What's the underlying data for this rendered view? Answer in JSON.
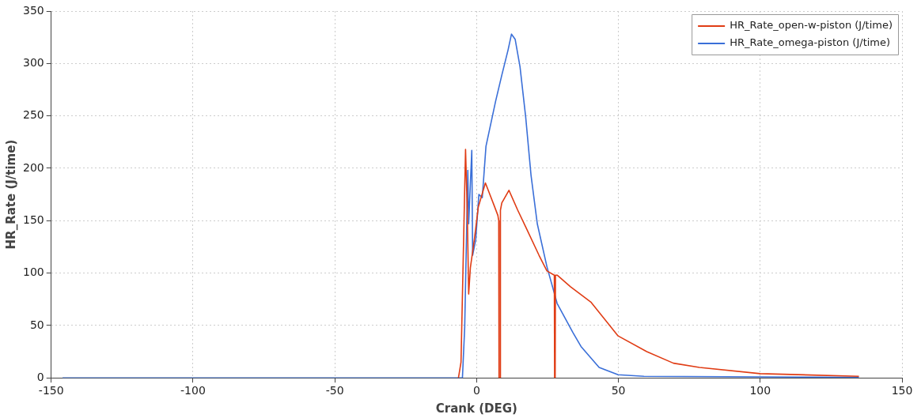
{
  "chart_data": {
    "type": "line",
    "xlabel": "Crank (DEG)",
    "ylabel": "HR_Rate (J/time)",
    "xlim": [
      -150,
      150
    ],
    "xticks": [
      -150,
      -100,
      -50,
      0,
      50,
      100,
      150
    ],
    "ylim": [
      0,
      350
    ],
    "yticks": [
      0,
      50,
      100,
      150,
      200,
      250,
      300,
      350
    ],
    "grid": true,
    "legend": "top right",
    "marker": "none",
    "line_style": "solid",
    "series": [
      {
        "name": "HR_Rate_open-w-piston (J/time)",
        "color": "#e03c14",
        "x": [
          -6.4,
          -5.5,
          -3.9,
          -3.3,
          -2.8,
          -2.2,
          -0.8,
          0.6,
          3.1,
          6.1,
          7.5,
          7.8,
          7.9,
          8.3,
          8.4,
          8.9,
          11.4,
          14.5,
          17.3,
          22,
          24.8,
          27.4,
          27.5,
          27.7,
          27.8,
          28.4,
          33.1,
          40.4,
          49.9,
          60,
          69.4,
          78.6,
          100,
          134.8
        ],
        "values": [
          0,
          15,
          218,
          160,
          80,
          105,
          132,
          163,
          186,
          165,
          155,
          150,
          0,
          0,
          160,
          167,
          179,
          160,
          144,
          117,
          102,
          98,
          0,
          0,
          98,
          98,
          87,
          72,
          40,
          25,
          14,
          10,
          4,
          1.5
        ]
      },
      {
        "name": "HR_Rate_omega-piston (J/time)",
        "color": "#3a6fd8",
        "x": [
          -146,
          -5,
          -4.2,
          -3.1,
          -2.8,
          -1.7,
          -1.4,
          -0.3,
          0.8,
          2,
          3.3,
          6.7,
          8.9,
          11.1,
          12.3,
          13.6,
          15.3,
          17.3,
          19.2,
          21.4,
          24.8,
          28.4,
          34,
          36.8,
          43.2,
          49.9,
          59,
          134.8
        ],
        "values": [
          0,
          0,
          48,
          198,
          147,
          217,
          117,
          132,
          175,
          172,
          221,
          264,
          289,
          313,
          328,
          323,
          297,
          249,
          193,
          147,
          106,
          71,
          43,
          30,
          10,
          3,
          1.5,
          0.5
        ]
      }
    ]
  }
}
